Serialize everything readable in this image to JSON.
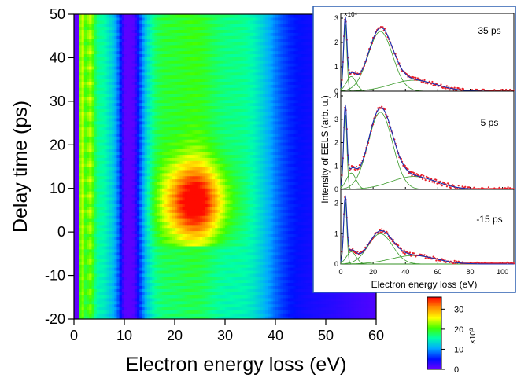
{
  "chart_data": [
    {
      "type": "heatmap",
      "title": "",
      "xlabel": "Electron energy loss (eV)",
      "ylabel": "Delay time (ps)",
      "xlim": [
        0,
        60
      ],
      "ylim": [
        -20,
        50
      ],
      "x_ticks": [
        "0",
        "10",
        "20",
        "30",
        "40",
        "50",
        "60"
      ],
      "y_ticks": [
        "-20",
        "-10",
        "0",
        "10",
        "20",
        "30",
        "40",
        "50"
      ],
      "colorscale": [
        "#6a00ff",
        "#0010ff",
        "#00aaff",
        "#00ffaa",
        "#40ff00",
        "#ffff00",
        "#ff8800",
        "#ff0000"
      ],
      "features": [
        {
          "x": 1.5,
          "level": "high"
        },
        {
          "x": 3.0,
          "level": "high"
        },
        {
          "x": 10.5,
          "level": "low"
        },
        {
          "x": 24.0,
          "y": 7.0,
          "level": "peak"
        }
      ]
    },
    {
      "type": "colorbar",
      "ticks": [
        "0",
        "10",
        "20",
        "30"
      ],
      "zlim": [
        0,
        36
      ],
      "multiplier": "×10³"
    },
    {
      "type": "line",
      "inset": true,
      "xlabel": "Electron energy loss (eV)",
      "ylabel": "Intensity of EELS (arb. u.)",
      "xlim": [
        0,
        107
      ],
      "x_ticks": [
        "0",
        "20",
        "40",
        "60",
        "80",
        "100"
      ],
      "multiplier": "×10⁴",
      "panels": [
        {
          "label": "35 ps",
          "ylim": [
            0,
            3
          ],
          "y_ticks": [
            "0",
            "1",
            "2",
            "3"
          ],
          "peaks": [
            {
              "x": 2.8,
              "y": 2.75,
              "w": 1.0
            },
            {
              "x": 6.5,
              "y": 0.6,
              "w": 3.0
            },
            {
              "x": 24.5,
              "y": 2.45,
              "w": 7.5
            },
            {
              "x": 45.0,
              "y": 0.45,
              "w": 14.0
            }
          ]
        },
        {
          "label": "5 ps",
          "ylim": [
            0,
            4
          ],
          "y_ticks": [
            "0",
            "1",
            "2",
            "3",
            "4"
          ],
          "peaks": [
            {
              "x": 2.8,
              "y": 3.25,
              "w": 1.0
            },
            {
              "x": 6.5,
              "y": 0.7,
              "w": 3.0
            },
            {
              "x": 24.5,
              "y": 3.3,
              "w": 7.5
            },
            {
              "x": 45.0,
              "y": 0.55,
              "w": 14.0
            }
          ]
        },
        {
          "label": "-15 ps",
          "ylim": [
            0,
            2.3
          ],
          "y_ticks": [
            "0",
            "1",
            "2"
          ],
          "peaks": [
            {
              "x": 2.8,
              "y": 2.05,
              "w": 1.0
            },
            {
              "x": 6.5,
              "y": 0.4,
              "w": 3.0
            },
            {
              "x": 24.5,
              "y": 1.0,
              "w": 7.5
            },
            {
              "x": 45.0,
              "y": 0.28,
              "w": 14.0
            }
          ]
        }
      ]
    }
  ]
}
